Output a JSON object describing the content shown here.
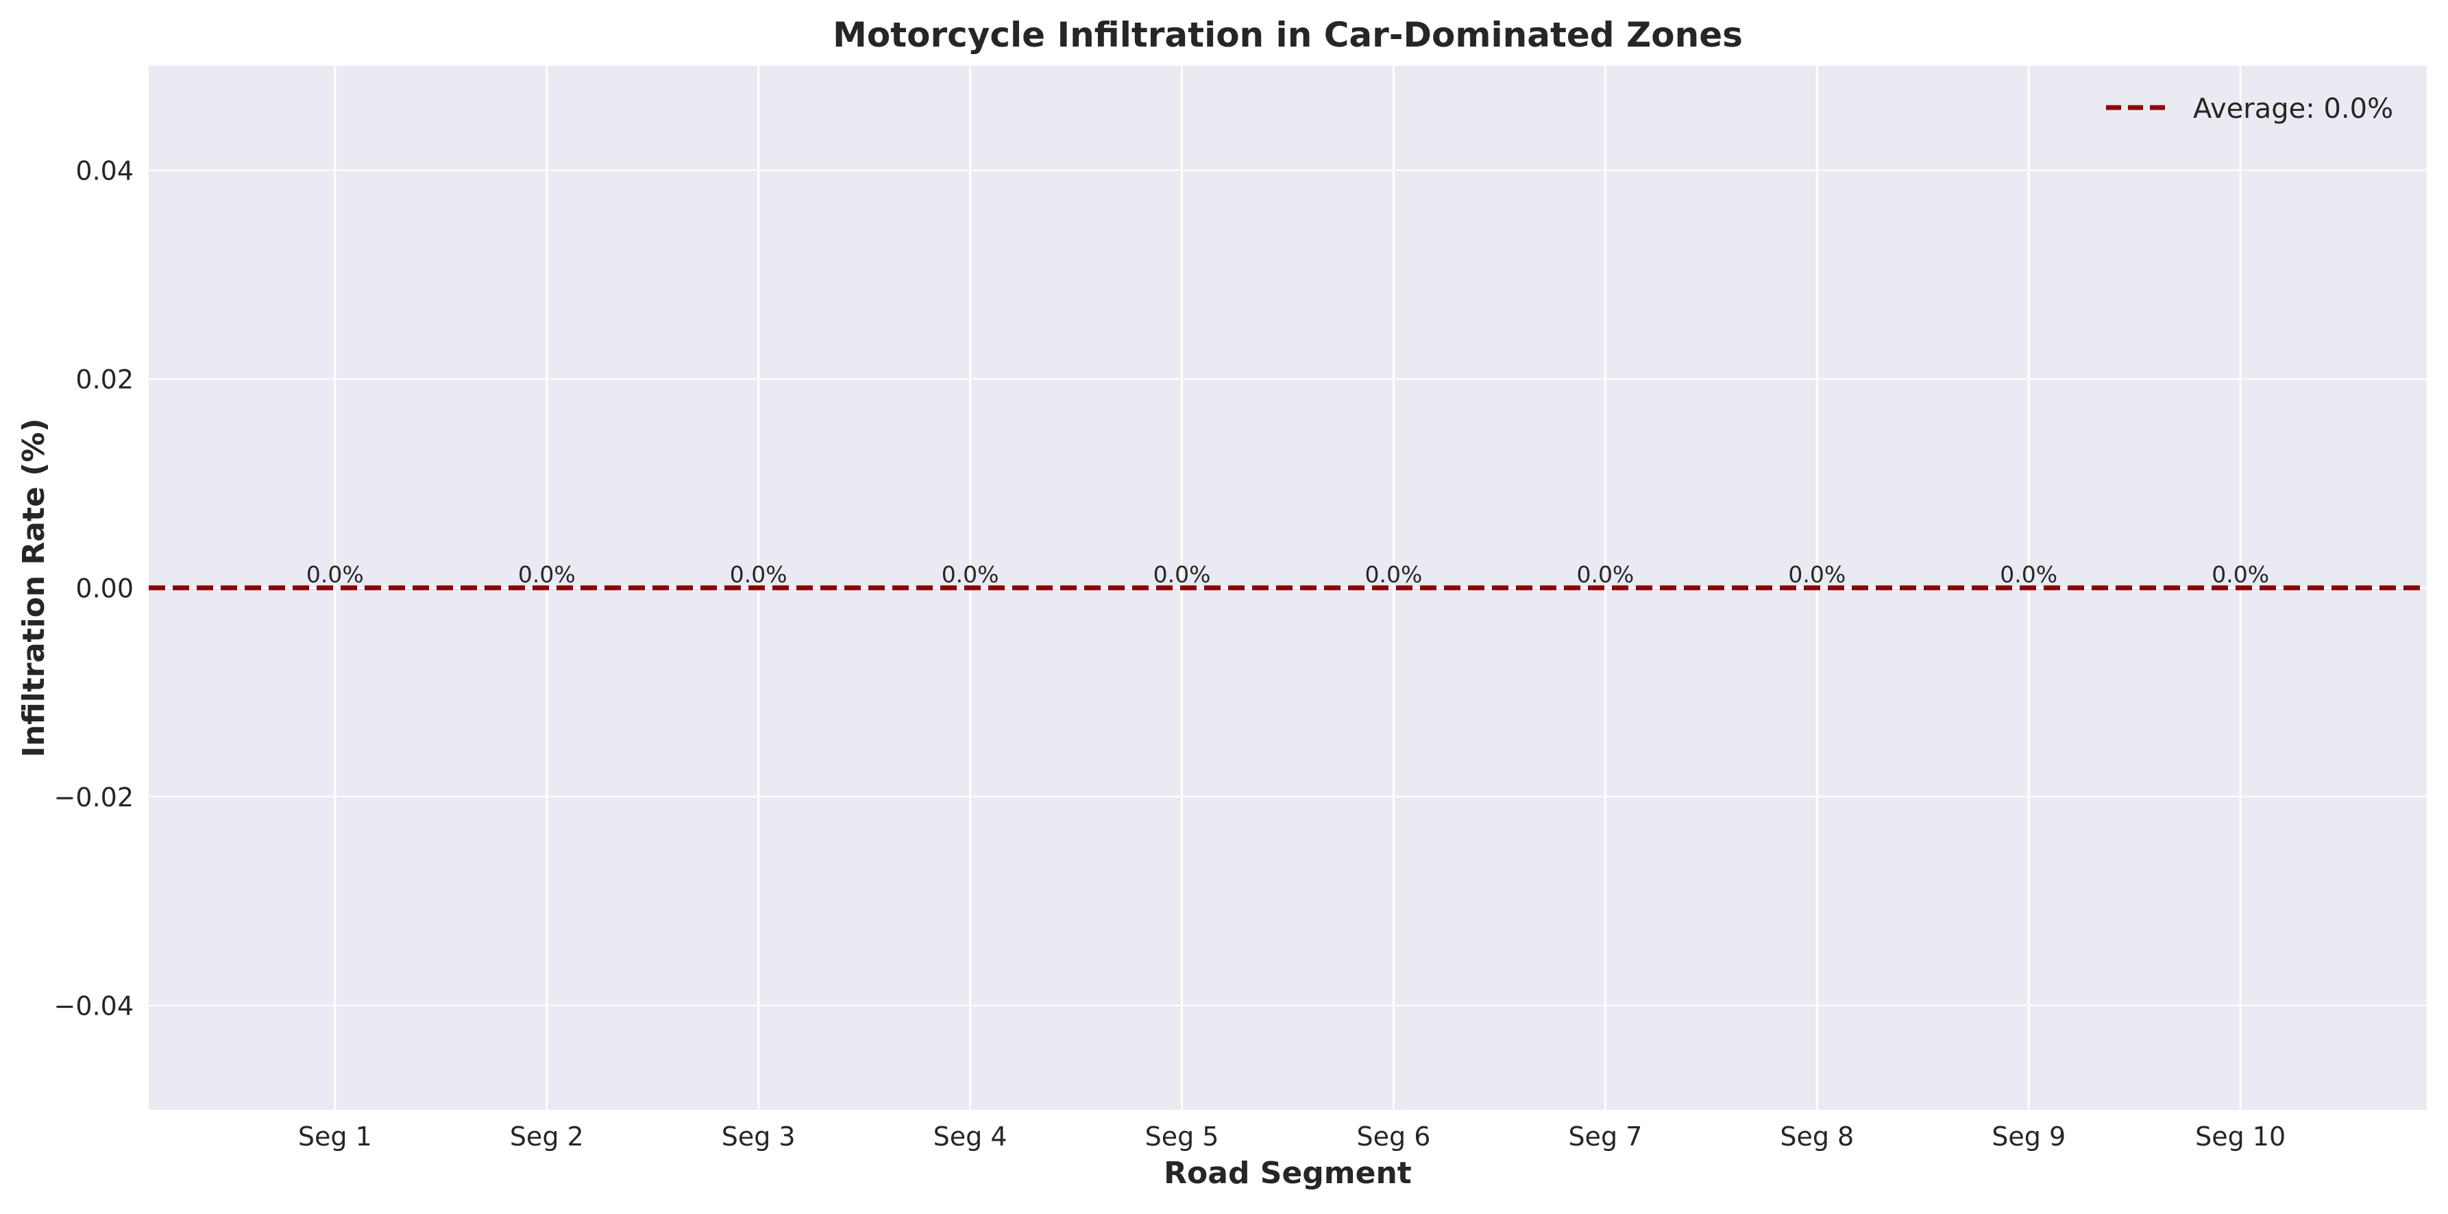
{
  "chart_data": {
    "type": "bar",
    "title": "Motorcycle Infiltration in Car-Dominated Zones",
    "xlabel": "Road Segment",
    "ylabel": "Infiltration Rate (%)",
    "categories": [
      "Seg 1",
      "Seg 2",
      "Seg 3",
      "Seg 4",
      "Seg 5",
      "Seg 6",
      "Seg 7",
      "Seg 8",
      "Seg 9",
      "Seg 10"
    ],
    "values": [
      0,
      0,
      0,
      0,
      0,
      0,
      0,
      0,
      0,
      0
    ],
    "data_labels": [
      "0.0%",
      "0.0%",
      "0.0%",
      "0.0%",
      "0.0%",
      "0.0%",
      "0.0%",
      "0.0%",
      "0.0%",
      "0.0%"
    ],
    "ylim": [
      -0.05,
      0.05
    ],
    "yticks": [
      -0.04,
      -0.02,
      0.0,
      0.02,
      0.04
    ],
    "ytick_labels": [
      "−0.04",
      "−0.02",
      "0.00",
      "0.02",
      "0.04"
    ],
    "reference_line": {
      "value": 0.0,
      "label": "Average: 0.0%",
      "color": "#8b0000",
      "style": "dashed"
    },
    "legend": {
      "position": "top-right"
    },
    "grid": true,
    "colors": {
      "plot_background": "#eaeaf2",
      "grid": "#ffffff",
      "text": "#262626"
    }
  }
}
